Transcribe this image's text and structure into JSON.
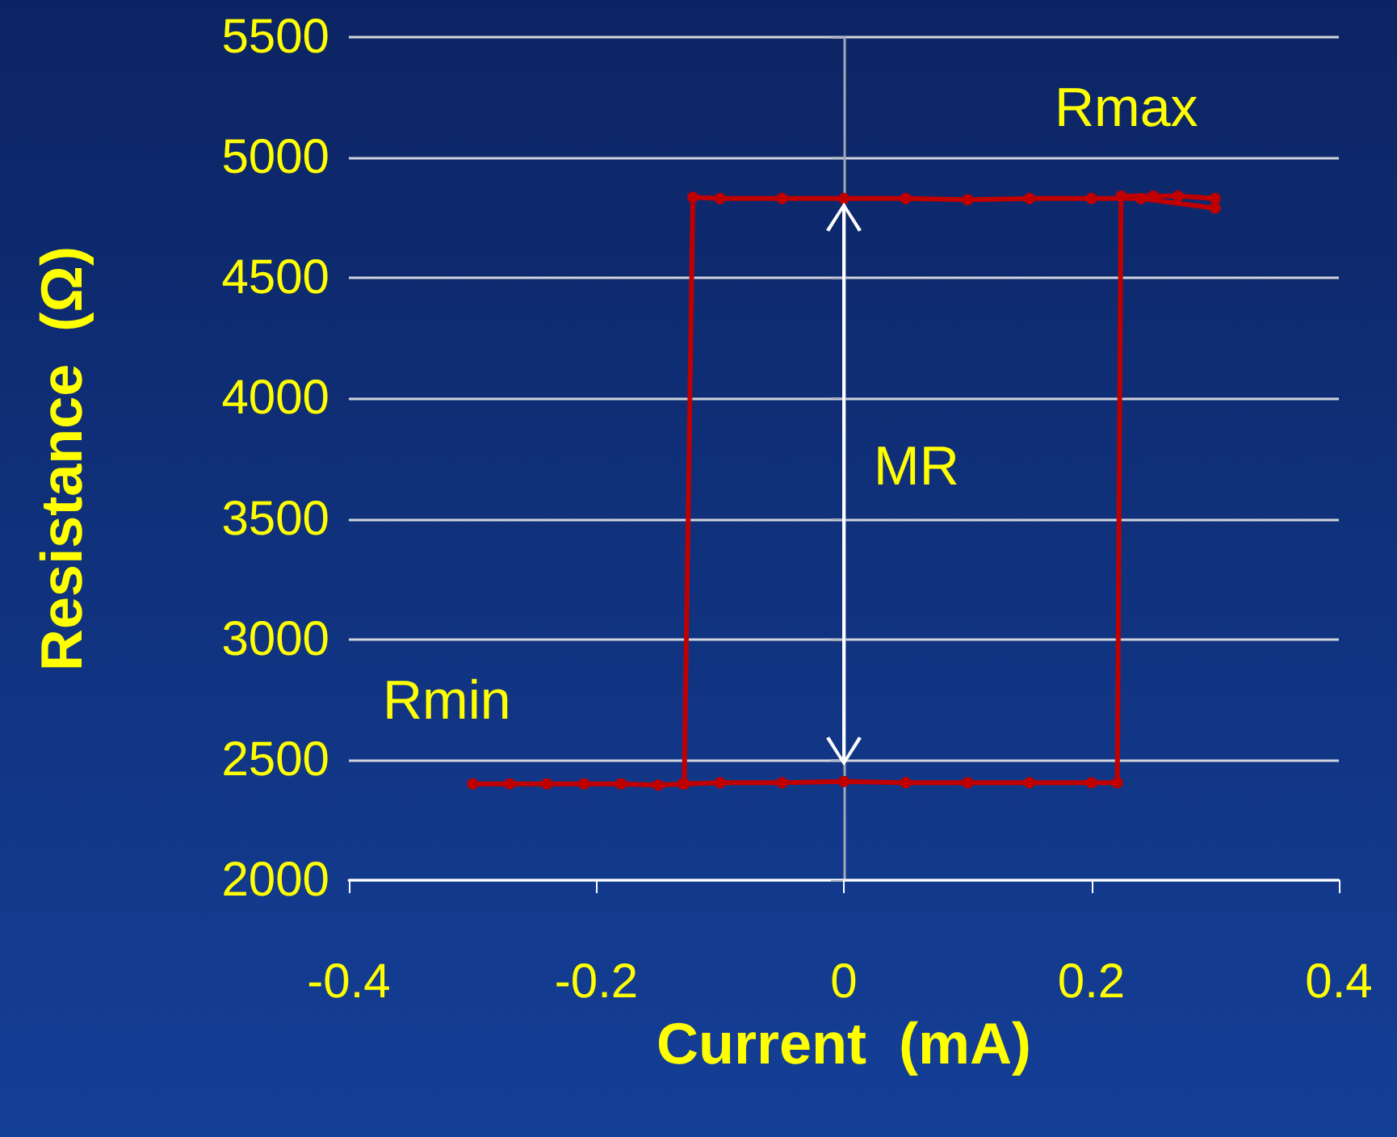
{
  "chart_data": {
    "type": "line",
    "xlabel": "Current  (mA)",
    "ylabel": "Resistance  (Ω)",
    "xlim": [
      -0.4,
      0.4
    ],
    "xticks": [
      -0.4,
      -0.2,
      0,
      0.2,
      0.4
    ],
    "ylim": [
      2000,
      5500
    ],
    "yticks": [
      2000,
      2500,
      3000,
      3500,
      4000,
      4500,
      5000,
      5500
    ],
    "grid": "y",
    "marker": "circle",
    "line_style": "solid",
    "series": [
      {
        "color": "#c00000",
        "x": [
          -0.3,
          -0.27,
          -0.24,
          -0.21,
          -0.18,
          -0.15,
          -0.13,
          -0.1,
          -0.05,
          0,
          0.05,
          0.1,
          0.15,
          0.2,
          0.221,
          0.224,
          0.25,
          0.27,
          0.3,
          0.3,
          0.24,
          0.2,
          0.15,
          0.1,
          0.05,
          0,
          -0.05,
          -0.1,
          -0.122,
          -0.129
        ],
        "values": [
          2400,
          2400,
          2400,
          2400,
          2400,
          2395,
          2400,
          2405,
          2405,
          2410,
          2405,
          2405,
          2405,
          2405,
          2405,
          4840,
          4840,
          4840,
          4830,
          4790,
          4830,
          4830,
          4830,
          4825,
          4830,
          4830,
          4830,
          4830,
          4835,
          2400
        ]
      }
    ],
    "annotations": [
      "Rmax",
      "Rmin",
      "MR"
    ]
  }
}
